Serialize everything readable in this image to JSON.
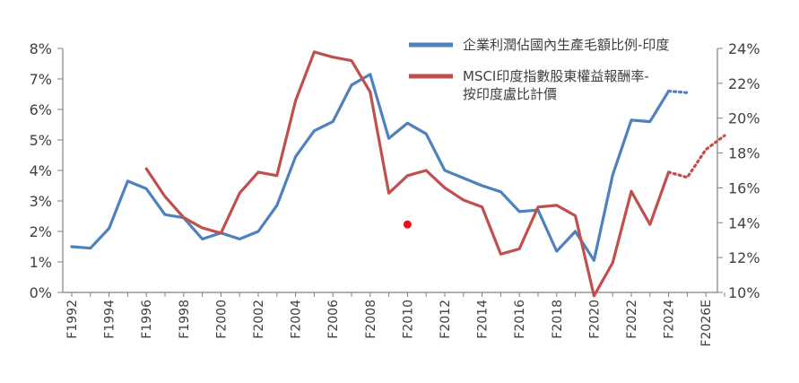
{
  "chart_data": {
    "type": "line",
    "legend_position": "top-right",
    "grid": false,
    "x": [
      "F1992",
      "F1993",
      "F1994",
      "F1995",
      "F1996",
      "F1997",
      "F1998",
      "F1999",
      "F2000",
      "F2001",
      "F2002",
      "F2003",
      "F2004",
      "F2005",
      "F2006",
      "F2007",
      "F2008",
      "F2009",
      "F2010",
      "F2011",
      "F2012",
      "F2013",
      "F2014",
      "F2015",
      "F2016",
      "F2017",
      "F2018",
      "F2019",
      "F2020",
      "F2021",
      "F2022",
      "F2023",
      "F2024",
      "F2025E",
      "F2026E",
      "F2027E"
    ],
    "x_tick_labels": [
      "F1992",
      "F1994",
      "F1996",
      "F1998",
      "F2000",
      "F2002",
      "F2004",
      "F2006",
      "F2008",
      "F2010",
      "F2012",
      "F2014",
      "F2016",
      "F2018",
      "F2020",
      "F2022",
      "F2024",
      "F2026E"
    ],
    "y_left": {
      "ticks": [
        "0%",
        "1%",
        "2%",
        "3%",
        "4%",
        "5%",
        "6%",
        "7%",
        "8%"
      ],
      "range": [
        0,
        8
      ]
    },
    "y_right": {
      "ticks": [
        "10%",
        "12%",
        "14%",
        "16%",
        "18%",
        "20%",
        "22%",
        "24%"
      ],
      "range": [
        10,
        24
      ]
    },
    "series": [
      {
        "name": "企業利潤佔國內生產毛額比例-印度",
        "axis": "left",
        "color": "#4f81bd",
        "x": [
          "F1992",
          "F1993",
          "F1994",
          "F1995",
          "F1996",
          "F1997",
          "F1998",
          "F1999",
          "F2000",
          "F2001",
          "F2002",
          "F2003",
          "F2004",
          "F2005",
          "F2006",
          "F2007",
          "F2008",
          "F2009",
          "F2010",
          "F2011",
          "F2012",
          "F2013",
          "F2014",
          "F2015",
          "F2016",
          "F2017",
          "F2018",
          "F2019",
          "F2020",
          "F2021",
          "F2022",
          "F2023",
          "F2024"
        ],
        "values": [
          1.5,
          1.45,
          2.1,
          3.65,
          3.4,
          2.55,
          2.45,
          1.75,
          1.95,
          1.75,
          2.0,
          2.85,
          4.45,
          5.3,
          5.6,
          6.8,
          7.15,
          5.05,
          5.55,
          5.2,
          4.0,
          3.75,
          3.5,
          3.3,
          2.65,
          2.7,
          1.35,
          2.0,
          1.05,
          3.85,
          5.65,
          5.6,
          6.6
        ],
        "projection": {
          "x": [
            "F2024",
            "F2025E"
          ],
          "values": [
            6.6,
            6.55
          ]
        }
      },
      {
        "name": "MSCI印度指數股東權益報酬率-按印度盧比計價",
        "axis": "right",
        "color": "#c0504d",
        "x": [
          "F1996",
          "F1997",
          "F1998",
          "F1999",
          "F2000",
          "F2001",
          "F2002",
          "F2003",
          "F2004",
          "F2005",
          "F2006",
          "F2007",
          "F2008",
          "F2009",
          "F2010",
          "F2011",
          "F2012",
          "F2013",
          "F2014",
          "F2015",
          "F2016",
          "F2017",
          "F2018",
          "F2019",
          "F2020",
          "F2021",
          "F2022",
          "F2023",
          "F2024"
        ],
        "values": [
          17.1,
          15.5,
          14.3,
          13.7,
          13.4,
          15.7,
          16.9,
          16.7,
          21.0,
          23.8,
          23.5,
          23.3,
          21.5,
          15.7,
          16.7,
          17.0,
          16.0,
          15.3,
          14.9,
          12.2,
          12.5,
          14.9,
          15.0,
          14.4,
          9.8,
          11.7,
          15.8,
          13.9,
          16.9
        ],
        "projection": {
          "x": [
            "F2024",
            "F2025E",
            "F2026E",
            "F2027E"
          ],
          "values": [
            16.9,
            16.6,
            18.2,
            19.0
          ]
        }
      }
    ],
    "annotations": [
      {
        "type": "dot",
        "x": "F2010",
        "axis": "right",
        "value": 13.9,
        "color": "#e8101c"
      }
    ]
  }
}
